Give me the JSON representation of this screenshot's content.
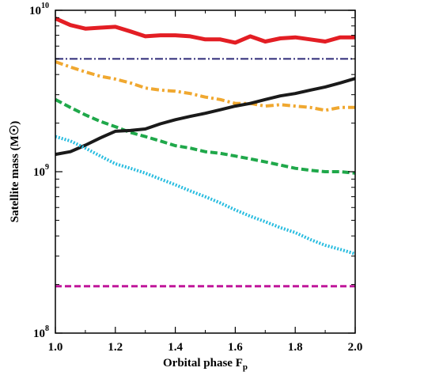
{
  "chart_data": {
    "type": "line",
    "xlabel": "Orbital phase F",
    "xlabel_sub": "p",
    "ylabel": "Satellite mass (M",
    "ylabel_symbol": "☉",
    "ylabel_close": ")",
    "xlim": [
      1.0,
      2.0
    ],
    "ylim": [
      100000000.0,
      10000000000.0
    ],
    "yscale": "log",
    "grid": false,
    "x_ticks": [
      {
        "value": 1.0,
        "label": "1.0"
      },
      {
        "value": 1.2,
        "label": "1.2"
      },
      {
        "value": 1.4,
        "label": "1.4"
      },
      {
        "value": 1.6,
        "label": "1.6"
      },
      {
        "value": 1.8,
        "label": "1.8"
      },
      {
        "value": 2.0,
        "label": "2.0"
      }
    ],
    "x_minor_ticks": [
      1.1,
      1.3,
      1.5,
      1.7,
      1.9
    ],
    "y_ticks": [
      {
        "value": 100000000.0,
        "base": "10",
        "exp": "8"
      },
      {
        "value": 1000000000.0,
        "base": "10",
        "exp": "9"
      },
      {
        "value": 10000000000.0,
        "base": "10",
        "exp": "10"
      }
    ],
    "y_minor_ticks": [
      200000000.0,
      300000000.0,
      400000000.0,
      500000000.0,
      600000000.0,
      700000000.0,
      800000000.0,
      900000000.0,
      2000000000.0,
      3000000000.0,
      4000000000.0,
      5000000000.0,
      6000000000.0,
      7000000000.0,
      8000000000.0,
      9000000000.0
    ],
    "series": [
      {
        "color": "#e31e24",
        "dash": "",
        "width": 5,
        "x": [
          1.0,
          1.05,
          1.1,
          1.15,
          1.2,
          1.25,
          1.3,
          1.35,
          1.4,
          1.45,
          1.5,
          1.55,
          1.6,
          1.65,
          1.7,
          1.75,
          1.8,
          1.85,
          1.9,
          1.95,
          2.0
        ],
        "y": [
          8900000000.0,
          8100000000.0,
          7700000000.0,
          7800000000.0,
          7900000000.0,
          7400000000.0,
          6900000000.0,
          7000000000.0,
          7000000000.0,
          6900000000.0,
          6600000000.0,
          6600000000.0,
          6300000000.0,
          6900000000.0,
          6400000000.0,
          6700000000.0,
          6800000000.0,
          6600000000.0,
          6400000000.0,
          6800000000.0,
          6800000000.0
        ]
      },
      {
        "color": "#2e2a78",
        "dash": "10 3 2 3",
        "width": 2,
        "x": [
          1.0,
          2.0
        ],
        "y": [
          5000000000.0,
          5000000000.0
        ]
      },
      {
        "color": "#f0a830",
        "dash": "10 4 3 4",
        "width": 4,
        "x": [
          1.0,
          1.05,
          1.1,
          1.15,
          1.2,
          1.25,
          1.3,
          1.35,
          1.4,
          1.45,
          1.5,
          1.55,
          1.6,
          1.65,
          1.7,
          1.75,
          1.8,
          1.85,
          1.9,
          1.95,
          2.0
        ],
        "y": [
          4800000000.0,
          4450000000.0,
          4150000000.0,
          3900000000.0,
          3750000000.0,
          3550000000.0,
          3300000000.0,
          3200000000.0,
          3150000000.0,
          3050000000.0,
          2900000000.0,
          2800000000.0,
          2650000000.0,
          2650000000.0,
          2550000000.0,
          2600000000.0,
          2550000000.0,
          2500000000.0,
          2400000000.0,
          2500000000.0,
          2500000000.0
        ]
      },
      {
        "color": "#1fa84a",
        "dash": "9 4",
        "width": 4,
        "x": [
          1.0,
          1.05,
          1.1,
          1.15,
          1.2,
          1.25,
          1.3,
          1.35,
          1.4,
          1.45,
          1.5,
          1.55,
          1.6,
          1.65,
          1.7,
          1.75,
          1.8,
          1.85,
          1.9,
          1.95,
          2.0
        ],
        "y": [
          2800000000.0,
          2500000000.0,
          2250000000.0,
          2050000000.0,
          1900000000.0,
          1750000000.0,
          1650000000.0,
          1550000000.0,
          1450000000.0,
          1400000000.0,
          1330000000.0,
          1300000000.0,
          1250000000.0,
          1200000000.0,
          1150000000.0,
          1100000000.0,
          1050000000.0,
          1020000000.0,
          1000000000.0,
          1000000000.0,
          980000000.0
        ]
      },
      {
        "color": "#1a1a1a",
        "dash": "",
        "width": 4,
        "x": [
          1.0,
          1.05,
          1.1,
          1.15,
          1.2,
          1.25,
          1.3,
          1.35,
          1.4,
          1.45,
          1.5,
          1.55,
          1.6,
          1.65,
          1.7,
          1.75,
          1.8,
          1.85,
          1.9,
          1.95,
          2.0
        ],
        "y": [
          1280000000.0,
          1330000000.0,
          1460000000.0,
          1620000000.0,
          1780000000.0,
          1800000000.0,
          1840000000.0,
          1980000000.0,
          2100000000.0,
          2200000000.0,
          2300000000.0,
          2420000000.0,
          2550000000.0,
          2650000000.0,
          2800000000.0,
          2950000000.0,
          3050000000.0,
          3200000000.0,
          3350000000.0,
          3550000000.0,
          3780000000.0
        ]
      },
      {
        "color": "#29bde0",
        "dash": "2 2",
        "width": 4,
        "x": [
          1.0,
          1.05,
          1.1,
          1.15,
          1.2,
          1.25,
          1.3,
          1.35,
          1.4,
          1.45,
          1.5,
          1.55,
          1.6,
          1.65,
          1.7,
          1.75,
          1.8,
          1.85,
          1.9,
          1.95,
          2.0
        ],
        "y": [
          1650000000.0,
          1550000000.0,
          1400000000.0,
          1250000000.0,
          1120000000.0,
          1050000000.0,
          980000000.0,
          900000000.0,
          830000000.0,
          760000000.0,
          700000000.0,
          640000000.0,
          580000000.0,
          530000000.0,
          490000000.0,
          450000000.0,
          420000000.0,
          380000000.0,
          350000000.0,
          330000000.0,
          310000000.0
        ]
      },
      {
        "color": "#c0169a",
        "dash": "8 4",
        "width": 3,
        "x": [
          1.0,
          2.0
        ],
        "y": [
          195000000.0,
          195000000.0
        ]
      }
    ]
  }
}
